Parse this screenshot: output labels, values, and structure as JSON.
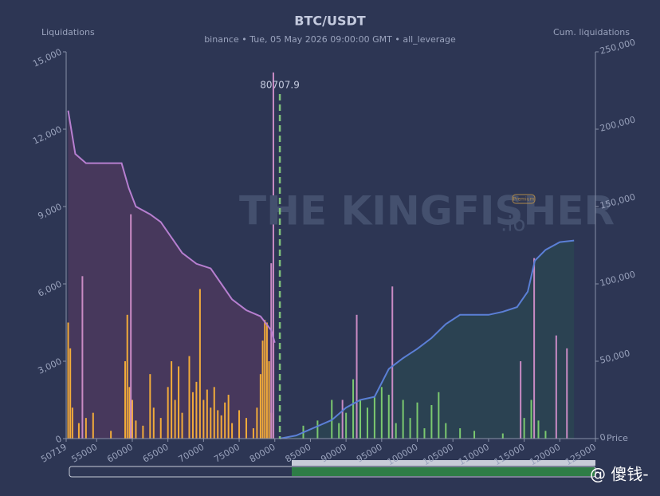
{
  "chart_data": {
    "type": "bar",
    "title": "BTC/USDT",
    "subtitle": "binance  •  Tue, 05 May 2026 09:00:00 GMT  •  all_leverage",
    "y_label": "Liquidations",
    "y2_label": "Cum. liquidations",
    "x_label": "Price",
    "watermark": "THE KINGFISHER",
    "watermark_suffix": ".io",
    "badge": "Premium",
    "credit": "@ 傻钱-",
    "current_price": 80707.9,
    "current_price_color": "#7fc27a",
    "xlim": [
      50719,
      125000
    ],
    "xticks": [
      50719,
      55000,
      60000,
      65000,
      70000,
      75000,
      80000,
      85000,
      90000,
      95000,
      100000,
      105000,
      110000,
      115000,
      120000,
      125000
    ],
    "ylim": [
      0,
      15000
    ],
    "yticks": [
      0,
      {
        "value": 3000,
        "label": "3,000"
      },
      {
        "value": 6000,
        "label": "6,000"
      },
      {
        "value": 9000,
        "label": "9,000"
      },
      {
        "value": 12000,
        "label": "12,000"
      },
      {
        "value": 15000,
        "label": "15,000"
      }
    ],
    "y2lim": [
      0,
      250000
    ],
    "y2ticks": [
      0,
      {
        "value": 50000,
        "label": "50,000"
      },
      {
        "value": 100000,
        "label": "100,000"
      },
      {
        "value": 150000,
        "label": "150,000"
      },
      {
        "value": 200000,
        "label": "200,000"
      },
      {
        "value": 250000,
        "label": "250,000"
      }
    ],
    "series": [
      {
        "type": "bar",
        "color": "#f2ab3a",
        "x": [
          51000,
          51300,
          51600,
          52500,
          53500,
          54500,
          57000,
          59000,
          59300,
          59600,
          60000,
          60500,
          61500,
          62500,
          63000,
          64000,
          65000,
          65500,
          66000,
          66500,
          67000,
          68000,
          68500,
          69000,
          69500,
          70000,
          70500,
          71000,
          71500,
          72000,
          72500,
          73000,
          73500,
          74000,
          75000,
          76000,
          77000,
          77500,
          78000,
          78300,
          78600,
          78900,
          79200,
          79500
        ],
        "values": [
          4500,
          3500,
          1200,
          600,
          800,
          1000,
          300,
          3000,
          4800,
          2000,
          1500,
          700,
          500,
          2500,
          1200,
          800,
          2000,
          3000,
          1500,
          2800,
          1000,
          3200,
          1800,
          2200,
          5800,
          1500,
          1900,
          1200,
          2000,
          1100,
          900,
          1400,
          1700,
          600,
          1100,
          800,
          400,
          1200,
          2500,
          3800,
          4600,
          4500,
          3000,
          1000
        ]
      },
      {
        "type": "bar",
        "color": "#7bc96f",
        "x": [
          84000,
          86000,
          88000,
          89000,
          90000,
          91000,
          92000,
          93000,
          94000,
          95000,
          96000,
          97000,
          98000,
          99000,
          100000,
          101000,
          102000,
          103000,
          104000,
          106000,
          108000,
          112000,
          115000,
          116000,
          117000,
          118000
        ],
        "values": [
          500,
          700,
          1500,
          600,
          1000,
          2300,
          1500,
          1200,
          1600,
          2000,
          1700,
          600,
          1500,
          800,
          1400,
          400,
          1300,
          1800,
          600,
          400,
          300,
          200,
          800,
          1500,
          700,
          300
        ]
      },
      {
        "type": "bar",
        "color": "#c98bc4",
        "x": [
          53000,
          59800,
          79500,
          79800,
          89500,
          91500,
          96500,
          114500,
          116400,
          119500,
          121000
        ],
        "values": [
          6300,
          8700,
          6800,
          14200,
          1500,
          4800,
          5900,
          3000,
          7000,
          4000,
          3500
        ]
      },
      {
        "type": "line",
        "axis": "y2",
        "color": "#b77fd0",
        "fill": "rgba(120,60,110,0.35)",
        "x": [
          51000,
          52000,
          53500,
          55000,
          58500,
          59500,
          60500,
          62500,
          64000,
          65500,
          67000,
          69000,
          71000,
          72500,
          74000,
          76000,
          78000,
          79500,
          80000
        ],
        "values": [
          212000,
          184000,
          178000,
          178000,
          178000,
          162000,
          150000,
          145000,
          140000,
          130000,
          120000,
          113000,
          110000,
          100000,
          90000,
          83000,
          79000,
          70000,
          62000
        ]
      },
      {
        "type": "line",
        "axis": "y2",
        "color": "#5b7fd6",
        "fill": "rgba(40,90,80,0.35)",
        "x": [
          80700,
          83000,
          86000,
          88000,
          90000,
          92000,
          94000,
          96000,
          98000,
          100000,
          102000,
          104000,
          106000,
          110000,
          112000,
          114000,
          115500,
          116500,
          118000,
          120000,
          122000
        ],
        "values": [
          0,
          2000,
          8000,
          12000,
          20000,
          25000,
          27000,
          45000,
          52000,
          58000,
          65000,
          74000,
          80000,
          80000,
          82000,
          85000,
          95000,
          115000,
          122000,
          127000,
          128000
        ]
      }
    ]
  }
}
